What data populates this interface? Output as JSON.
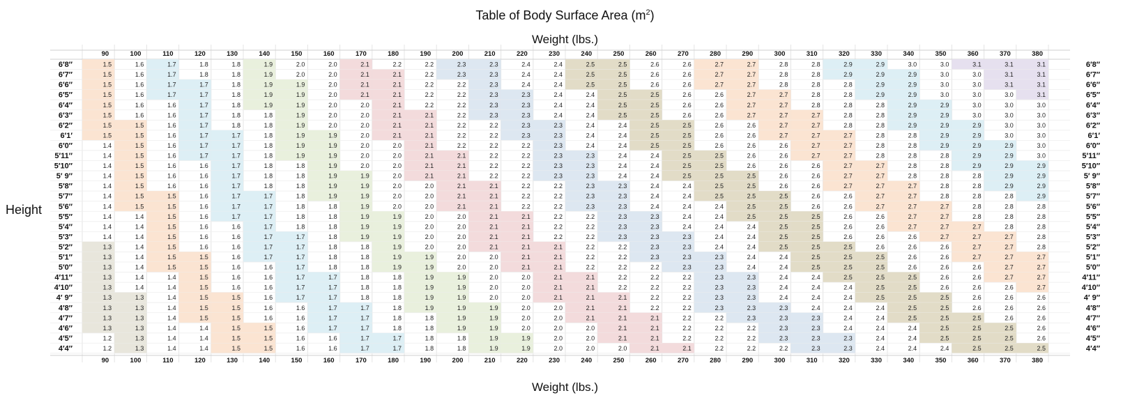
{
  "title_text": "Table of Body Surface Area (m",
  "title_sup": "2",
  "title_close": ")",
  "axis": {
    "weight_label": "Weight (lbs.)",
    "height_label": "Height"
  },
  "chart_data": {
    "type": "heatmap",
    "title": "Table of Body Surface Area (m²)",
    "xlabel": "Weight (lbs.)",
    "ylabel": "Height",
    "x": [
      90,
      100,
      110,
      120,
      130,
      140,
      150,
      160,
      170,
      180,
      190,
      200,
      210,
      220,
      230,
      240,
      250,
      260,
      270,
      280,
      290,
      300,
      310,
      320,
      330,
      340,
      350,
      360,
      370,
      380
    ],
    "y": [
      "6′8″",
      "6′7″",
      "6′6″",
      "6′5″",
      "6′4″",
      "6′3″",
      "6′2″",
      "6′1′",
      "6′0″",
      "5′11″",
      "5′10″",
      "5′ 9″",
      "5′8″",
      "5′7″",
      "5′6″",
      "5′5″",
      "5′4″",
      "5′3″",
      "5′2″",
      "5′1″",
      "5′0″",
      "4′11″",
      "4′10″",
      "4′ 9″",
      "4′8″",
      "4′7″",
      "4′6″",
      "4′5″",
      "4′4″"
    ],
    "values": [
      [
        1.5,
        1.6,
        1.7,
        1.8,
        1.8,
        1.9,
        2.0,
        2.0,
        2.1,
        2.2,
        2.2,
        2.3,
        2.3,
        2.4,
        2.4,
        2.5,
        2.5,
        2.6,
        2.6,
        2.7,
        2.7,
        2.8,
        2.8,
        2.9,
        2.9,
        3.0,
        3.0,
        3.1,
        3.1,
        3.1
      ],
      [
        1.5,
        1.6,
        1.7,
        1.8,
        1.8,
        1.9,
        2.0,
        2.0,
        2.1,
        2.1,
        2.2,
        2.3,
        2.3,
        2.4,
        2.4,
        2.5,
        2.5,
        2.6,
        2.6,
        2.7,
        2.7,
        2.8,
        2.8,
        2.9,
        2.9,
        2.9,
        3.0,
        3.0,
        3.1,
        3.1
      ],
      [
        1.5,
        1.6,
        1.7,
        1.7,
        1.8,
        1.9,
        1.9,
        2.0,
        2.1,
        2.1,
        2.2,
        2.2,
        2.3,
        2.4,
        2.4,
        2.5,
        2.5,
        2.6,
        2.6,
        2.7,
        2.7,
        2.8,
        2.8,
        2.8,
        2.9,
        2.9,
        3.0,
        3.0,
        3.1,
        3.1
      ],
      [
        1.5,
        1.6,
        1.7,
        1.7,
        1.8,
        1.9,
        1.9,
        2.0,
        2.1,
        2.1,
        2.2,
        2.2,
        2.3,
        2.3,
        2.4,
        2.4,
        2.5,
        2.5,
        2.6,
        2.6,
        2.7,
        2.7,
        2.8,
        2.8,
        2.9,
        2.9,
        3.0,
        3.0,
        3.0,
        3.1
      ],
      [
        1.5,
        1.6,
        1.6,
        1.7,
        1.8,
        1.9,
        1.9,
        2.0,
        2.0,
        2.1,
        2.2,
        2.2,
        2.3,
        2.3,
        2.4,
        2.4,
        2.5,
        2.5,
        2.6,
        2.6,
        2.7,
        2.7,
        2.8,
        2.8,
        2.8,
        2.9,
        2.9,
        3.0,
        3.0,
        3.0
      ],
      [
        1.5,
        1.6,
        1.6,
        1.7,
        1.8,
        1.8,
        1.9,
        2.0,
        2.0,
        2.1,
        2.1,
        2.2,
        2.3,
        2.3,
        2.4,
        2.4,
        2.5,
        2.5,
        2.6,
        2.6,
        2.7,
        2.7,
        2.7,
        2.8,
        2.8,
        2.9,
        2.9,
        3.0,
        3.0,
        3.0
      ],
      [
        1.5,
        1.5,
        1.6,
        1.7,
        1.8,
        1.8,
        1.9,
        2.0,
        2.0,
        2.1,
        2.1,
        2.2,
        2.2,
        2.3,
        2.3,
        2.4,
        2.4,
        2.5,
        2.5,
        2.6,
        2.6,
        2.7,
        2.7,
        2.8,
        2.8,
        2.9,
        2.9,
        2.9,
        3.0,
        3.0
      ],
      [
        1.5,
        1.5,
        1.6,
        1.7,
        1.7,
        1.8,
        1.9,
        1.9,
        2.0,
        2.1,
        2.1,
        2.2,
        2.2,
        2.3,
        2.3,
        2.4,
        2.4,
        2.5,
        2.5,
        2.6,
        2.6,
        2.7,
        2.7,
        2.7,
        2.8,
        2.8,
        2.9,
        2.9,
        3.0,
        3.0
      ],
      [
        1.4,
        1.5,
        1.6,
        1.7,
        1.7,
        1.8,
        1.9,
        1.9,
        2.0,
        2.0,
        2.1,
        2.2,
        2.2,
        2.2,
        2.3,
        2.4,
        2.4,
        2.5,
        2.5,
        2.6,
        2.6,
        2.6,
        2.7,
        2.7,
        2.8,
        2.8,
        2.9,
        2.9,
        2.9,
        3.0
      ],
      [
        1.4,
        1.5,
        1.6,
        1.7,
        1.7,
        1.8,
        1.9,
        1.9,
        2.0,
        2.0,
        2.1,
        2.1,
        2.2,
        2.2,
        2.3,
        2.3,
        2.4,
        2.4,
        2.5,
        2.5,
        2.6,
        2.6,
        2.7,
        2.7,
        2.8,
        2.8,
        2.8,
        2.9,
        2.9,
        3.0
      ],
      [
        1.4,
        1.5,
        1.6,
        1.6,
        1.7,
        1.8,
        1.8,
        1.9,
        2.0,
        2.0,
        2.1,
        2.1,
        2.2,
        2.2,
        2.3,
        2.3,
        2.4,
        2.4,
        2.5,
        2.5,
        2.6,
        2.6,
        2.6,
        2.7,
        2.7,
        2.8,
        2.8,
        2.9,
        2.9,
        2.9
      ],
      [
        1.4,
        1.5,
        1.6,
        1.6,
        1.7,
        1.8,
        1.8,
        1.9,
        1.9,
        2.0,
        2.1,
        2.1,
        2.2,
        2.2,
        2.3,
        2.3,
        2.4,
        2.4,
        2.5,
        2.5,
        2.5,
        2.6,
        2.6,
        2.7,
        2.7,
        2.8,
        2.8,
        2.8,
        2.9,
        2.9
      ],
      [
        1.4,
        1.5,
        1.6,
        1.6,
        1.7,
        1.8,
        1.8,
        1.9,
        1.9,
        2.0,
        2.0,
        2.1,
        2.1,
        2.2,
        2.2,
        2.3,
        2.3,
        2.4,
        2.4,
        2.5,
        2.5,
        2.6,
        2.6,
        2.7,
        2.7,
        2.7,
        2.8,
        2.8,
        2.9,
        2.9
      ],
      [
        1.4,
        1.5,
        1.5,
        1.6,
        1.7,
        1.7,
        1.8,
        1.9,
        1.9,
        2.0,
        2.0,
        2.1,
        2.1,
        2.2,
        2.2,
        2.3,
        2.3,
        2.4,
        2.4,
        2.5,
        2.5,
        2.5,
        2.6,
        2.6,
        2.7,
        2.7,
        2.8,
        2.8,
        2.8,
        2.9
      ],
      [
        1.4,
        1.5,
        1.5,
        1.6,
        1.7,
        1.7,
        1.8,
        1.8,
        1.9,
        2.0,
        2.0,
        2.1,
        2.1,
        2.2,
        2.2,
        2.3,
        2.3,
        2.4,
        2.4,
        2.4,
        2.5,
        2.5,
        2.6,
        2.6,
        2.7,
        2.7,
        2.7,
        2.8,
        2.8,
        2.8
      ],
      [
        1.4,
        1.4,
        1.5,
        1.6,
        1.7,
        1.7,
        1.8,
        1.8,
        1.9,
        1.9,
        2.0,
        2.0,
        2.1,
        2.1,
        2.2,
        2.2,
        2.3,
        2.3,
        2.4,
        2.4,
        2.5,
        2.5,
        2.5,
        2.6,
        2.6,
        2.7,
        2.7,
        2.8,
        2.8,
        2.8
      ],
      [
        1.4,
        1.4,
        1.5,
        1.6,
        1.6,
        1.7,
        1.8,
        1.8,
        1.9,
        1.9,
        2.0,
        2.0,
        2.1,
        2.1,
        2.2,
        2.2,
        2.3,
        2.3,
        2.4,
        2.4,
        2.4,
        2.5,
        2.5,
        2.6,
        2.6,
        2.7,
        2.7,
        2.7,
        2.8,
        2.8
      ],
      [
        1.4,
        1.4,
        1.5,
        1.6,
        1.6,
        1.7,
        1.7,
        1.8,
        1.9,
        1.9,
        2.0,
        2.0,
        2.1,
        2.1,
        2.2,
        2.2,
        2.3,
        2.3,
        2.3,
        2.4,
        2.4,
        2.5,
        2.5,
        2.6,
        2.6,
        2.6,
        2.7,
        2.7,
        2.7,
        2.8
      ],
      [
        1.3,
        1.4,
        1.5,
        1.6,
        1.6,
        1.7,
        1.7,
        1.8,
        1.8,
        1.9,
        2.0,
        2.0,
        2.1,
        2.1,
        2.1,
        2.2,
        2.2,
        2.3,
        2.3,
        2.4,
        2.4,
        2.5,
        2.5,
        2.5,
        2.6,
        2.6,
        2.6,
        2.7,
        2.7,
        2.8
      ],
      [
        1.3,
        1.4,
        1.5,
        1.5,
        1.6,
        1.7,
        1.7,
        1.8,
        1.8,
        1.9,
        1.9,
        2.0,
        2.0,
        2.1,
        2.1,
        2.2,
        2.2,
        2.3,
        2.3,
        2.3,
        2.4,
        2.4,
        2.5,
        2.5,
        2.5,
        2.6,
        2.6,
        2.7,
        2.7,
        2.7
      ],
      [
        1.3,
        1.4,
        1.5,
        1.5,
        1.6,
        1.6,
        1.7,
        1.8,
        1.8,
        1.9,
        1.9,
        2.0,
        2.0,
        2.1,
        2.1,
        2.2,
        2.2,
        2.2,
        2.3,
        2.3,
        2.4,
        2.4,
        2.5,
        2.5,
        2.5,
        2.6,
        2.6,
        2.6,
        2.7,
        2.7
      ],
      [
        1.3,
        1.4,
        1.4,
        1.5,
        1.6,
        1.6,
        1.7,
        1.7,
        1.8,
        1.8,
        1.9,
        1.9,
        2.0,
        2.0,
        2.1,
        2.1,
        2.2,
        2.2,
        2.2,
        2.3,
        2.3,
        2.4,
        2.4,
        2.5,
        2.5,
        2.5,
        2.6,
        2.6,
        2.7,
        2.7
      ],
      [
        1.3,
        1.4,
        1.4,
        1.5,
        1.6,
        1.6,
        1.7,
        1.7,
        1.8,
        1.8,
        1.9,
        1.9,
        2.0,
        2.0,
        2.1,
        2.1,
        2.2,
        2.2,
        2.2,
        2.3,
        2.3,
        2.4,
        2.4,
        2.4,
        2.5,
        2.5,
        2.6,
        2.6,
        2.6,
        2.7
      ],
      [
        1.3,
        1.3,
        1.4,
        1.5,
        1.5,
        1.6,
        1.7,
        1.7,
        1.8,
        1.8,
        1.9,
        1.9,
        2.0,
        2.0,
        2.1,
        2.1,
        2.1,
        2.2,
        2.2,
        2.3,
        2.3,
        2.4,
        2.4,
        2.4,
        2.5,
        2.5,
        2.5,
        2.6,
        2.6,
        2.6
      ],
      [
        1.3,
        1.3,
        1.4,
        1.5,
        1.5,
        1.6,
        1.6,
        1.7,
        1.7,
        1.8,
        1.9,
        1.9,
        1.9,
        2.0,
        2.0,
        2.1,
        2.1,
        2.2,
        2.2,
        2.3,
        2.3,
        2.3,
        2.4,
        2.4,
        2.4,
        2.5,
        2.5,
        2.6,
        2.6,
        2.6
      ],
      [
        1.3,
        1.3,
        1.4,
        1.5,
        1.5,
        1.6,
        1.6,
        1.7,
        1.7,
        1.8,
        1.8,
        1.9,
        1.9,
        2.0,
        2.0,
        2.1,
        2.1,
        2.1,
        2.2,
        2.2,
        2.3,
        2.3,
        2.3,
        2.4,
        2.4,
        2.5,
        2.5,
        2.5,
        2.6,
        2.6
      ],
      [
        1.3,
        1.3,
        1.4,
        1.4,
        1.5,
        1.5,
        1.6,
        1.7,
        1.7,
        1.8,
        1.8,
        1.9,
        1.9,
        2.0,
        2.0,
        2.0,
        2.1,
        2.1,
        2.2,
        2.2,
        2.2,
        2.3,
        2.3,
        2.4,
        2.4,
        2.4,
        2.5,
        2.5,
        2.5,
        2.6
      ],
      [
        1.2,
        1.3,
        1.4,
        1.4,
        1.5,
        1.5,
        1.6,
        1.6,
        1.7,
        1.7,
        1.8,
        1.8,
        1.9,
        1.9,
        2.0,
        2.0,
        2.1,
        2.1,
        2.2,
        2.2,
        2.2,
        2.3,
        2.3,
        2.3,
        2.4,
        2.4,
        2.5,
        2.5,
        2.5,
        2.6
      ],
      [
        1.2,
        1.3,
        1.4,
        1.4,
        1.5,
        1.5,
        1.6,
        1.6,
        1.7,
        1.7,
        1.8,
        1.8,
        1.9,
        1.9,
        2.0,
        2.0,
        2.0,
        2.1,
        2.1,
        2.2,
        2.2,
        2.2,
        2.3,
        2.3,
        2.4,
        2.4,
        2.4,
        2.5,
        2.5,
        2.5
      ]
    ],
    "band_colors": {
      "1.3": "#e8e6dc",
      "1.5": "#fbe4d2",
      "1.7": "#ddeff5",
      "1.9": "#e9f0dd",
      "2.1": "#f3dbdc",
      "2.3": "#dde7f1",
      "2.5": "#e2dcc7",
      "2.7": "#fbe4d2",
      "2.9": "#ddeff5",
      "3.1": "#e6e0ef"
    },
    "grid": true
  }
}
